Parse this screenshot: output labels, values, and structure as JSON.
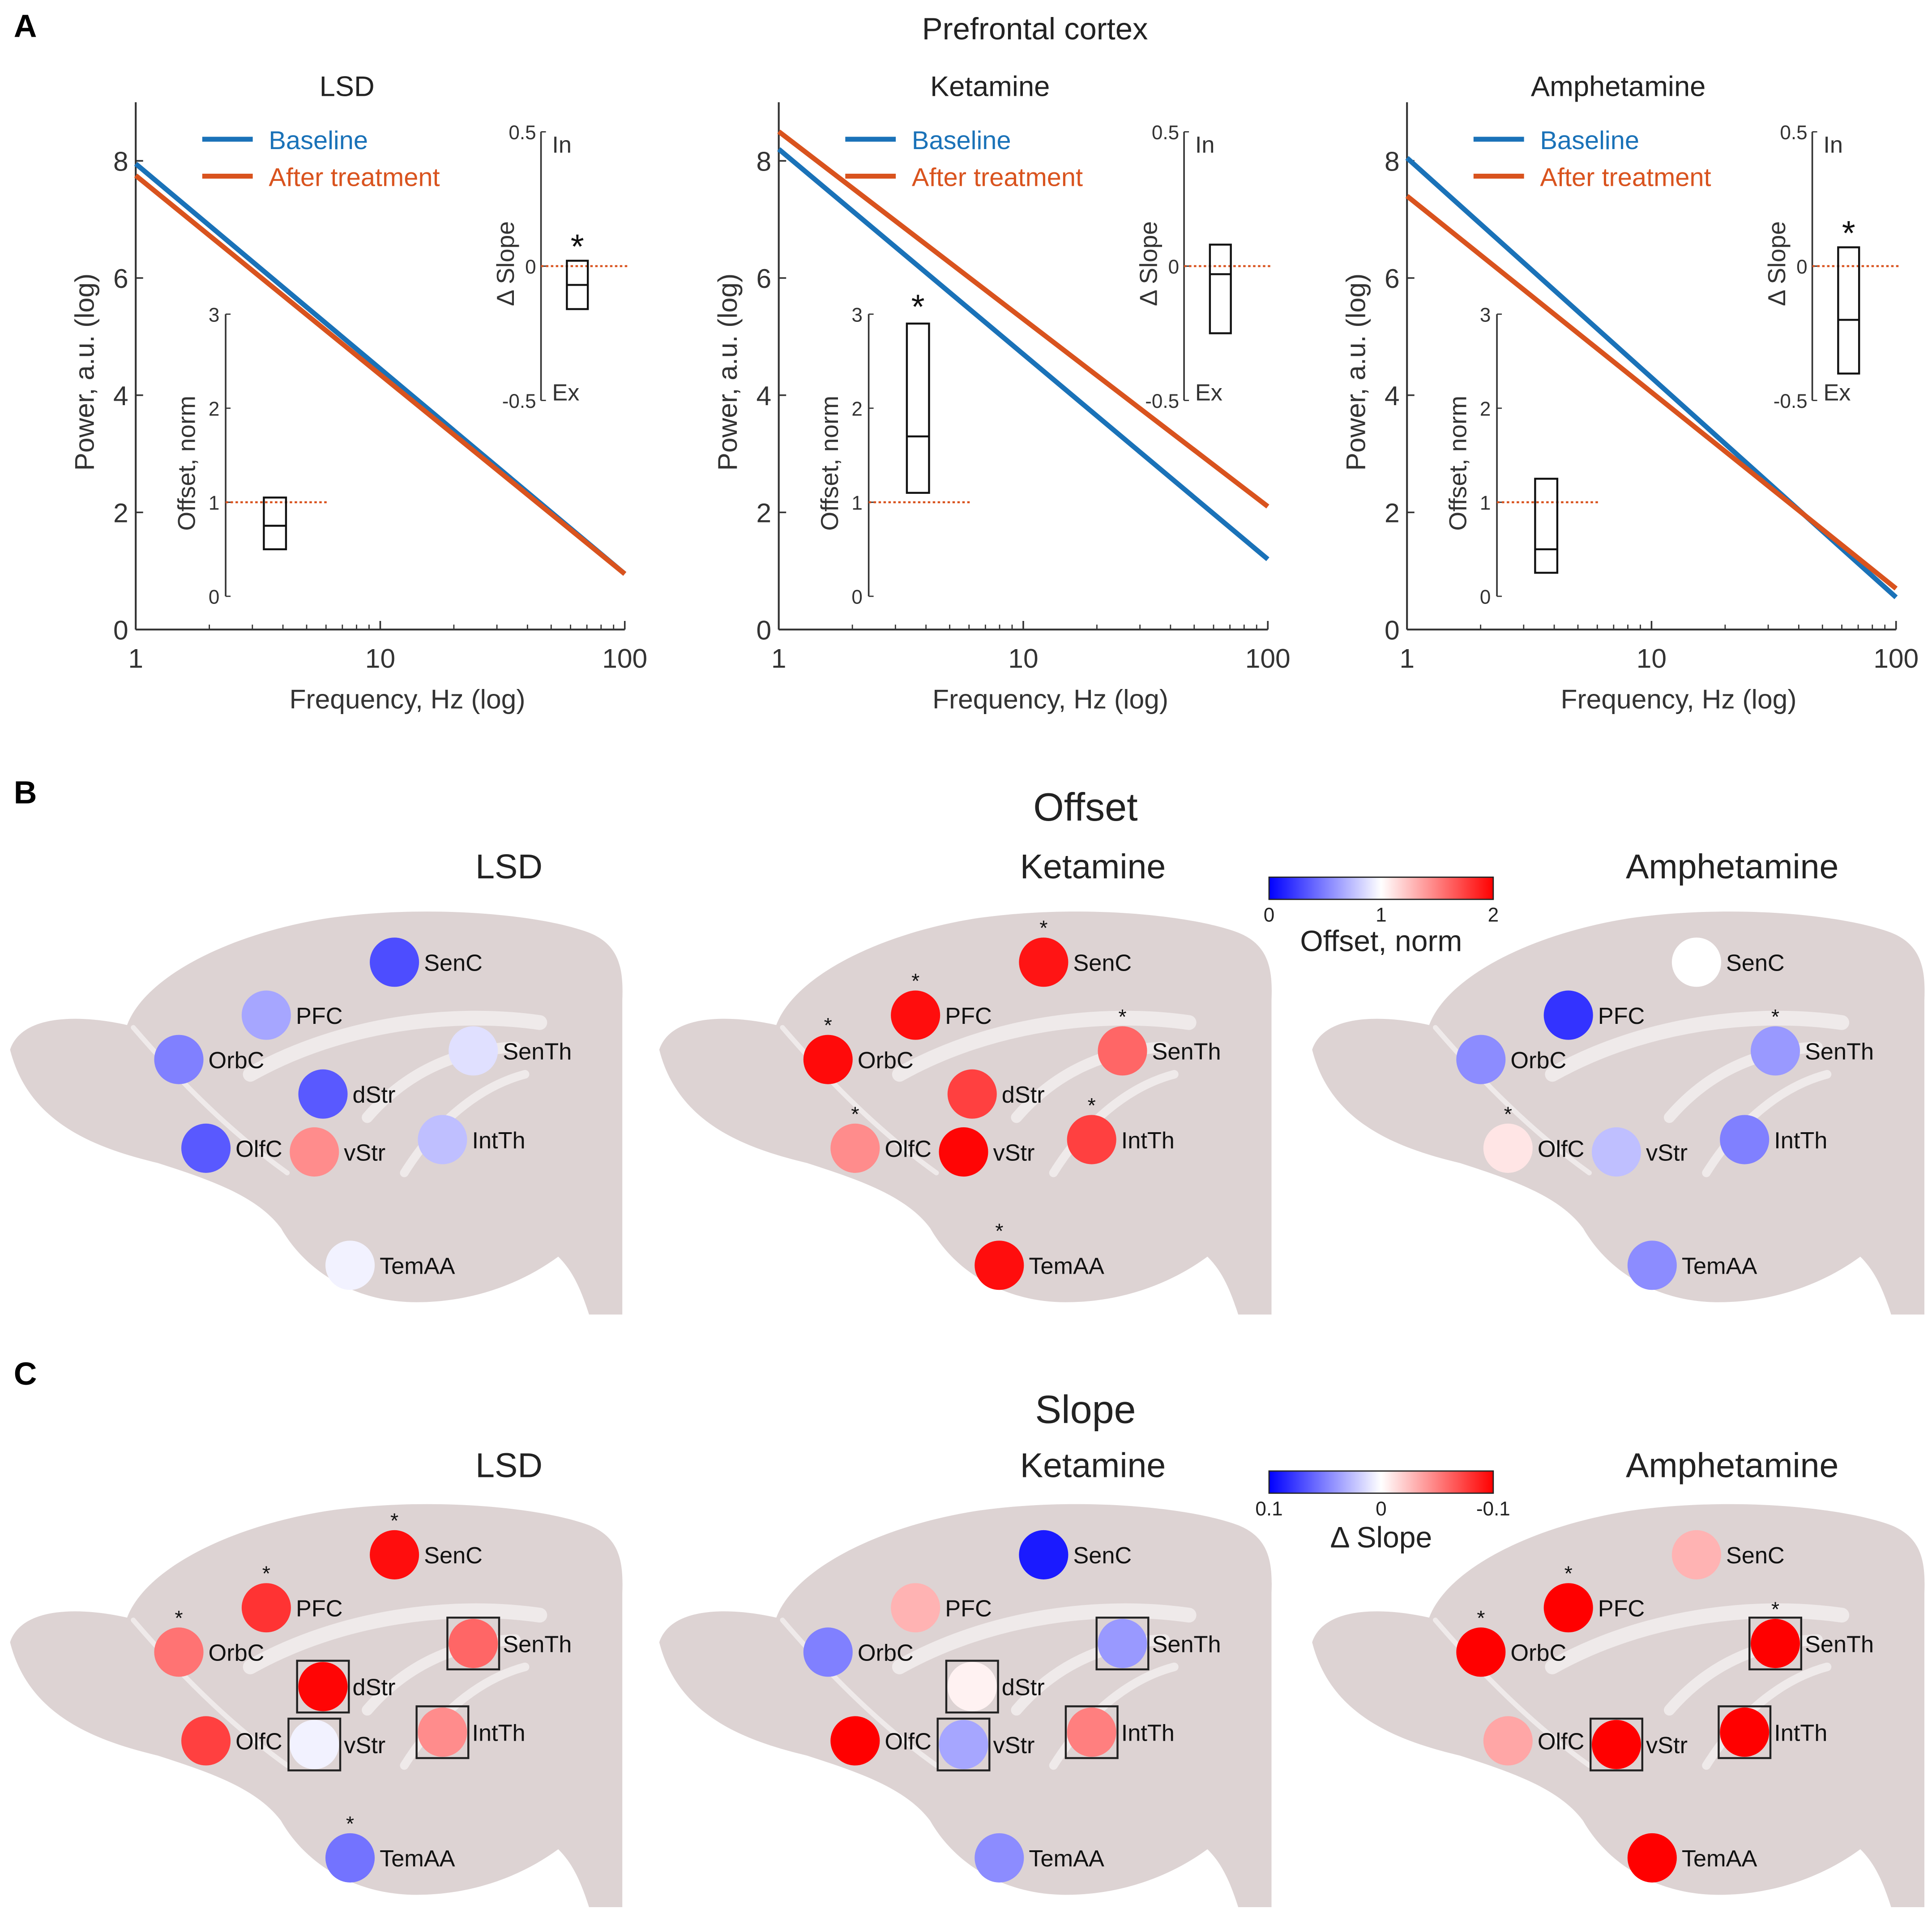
{
  "panel_letters": [
    "A",
    "B",
    "C"
  ],
  "panel_a_title": "Prefrontal cortex",
  "offset_title": "Offset",
  "slope_title": "Slope",
  "colorbar_offset": {
    "label": "Offset, norm",
    "ticks": [
      "0",
      "1",
      "2"
    ],
    "low": "#0000ff",
    "mid": "#ffffff",
    "high": "#ff0000"
  },
  "colorbar_slope": {
    "label": "Δ Slope",
    "ticks": [
      "0.1",
      "0",
      "-0.1"
    ],
    "low": "#0000ff",
    "mid": "#ffffff",
    "high": "#ff0000"
  },
  "colors": {
    "baseline": "#1a72b8",
    "after": "#d9531e",
    "brain": "#ddd3d3",
    "brain_fiber": "#efeaea",
    "zero_line": "#d9531e"
  },
  "chart_data": [
    {
      "type": "line",
      "title": "LSD",
      "xlabel": "Frequency, Hz (log)",
      "ylabel": "Power, a.u. (log)",
      "xscale": "log",
      "xlim": [
        1,
        100
      ],
      "ylim": [
        0,
        9
      ],
      "xticks": [
        "1",
        "10",
        "100"
      ],
      "yticks": [
        "0",
        "2",
        "4",
        "6",
        "8"
      ],
      "legend": [
        "Baseline",
        "After treatment"
      ],
      "series": [
        {
          "name": "Baseline",
          "x": [
            1,
            100
          ],
          "y": [
            7.95,
            0.95
          ]
        },
        {
          "name": "After treatment",
          "x": [
            1,
            100
          ],
          "y": [
            7.75,
            0.95
          ]
        }
      ],
      "inset_offset": {
        "ylabel": "Offset, norm",
        "ylim": [
          0,
          3
        ],
        "yticks": [
          "0",
          "1",
          "2",
          "3"
        ],
        "box": {
          "q1": 0.5,
          "median": 0.75,
          "q3": 1.05
        },
        "reference": 1,
        "significant": false
      },
      "inset_slope": {
        "ylabel": "Δ Slope",
        "ylim": [
          -0.5,
          0.5
        ],
        "yticks": [
          "0.5",
          "0",
          "-0.5"
        ],
        "top_label": "In",
        "bottom_label": "Ex",
        "box": {
          "q1": -0.16,
          "median": -0.07,
          "q3": 0.02
        },
        "reference": 0,
        "significant": true
      },
      "significance_mark": "*"
    },
    {
      "type": "line",
      "title": "Ketamine",
      "xlabel": "Frequency, Hz (log)",
      "ylabel": "Power, a.u. (log)",
      "xscale": "log",
      "xlim": [
        1,
        100
      ],
      "ylim": [
        0,
        9
      ],
      "xticks": [
        "1",
        "10",
        "100"
      ],
      "yticks": [
        "0",
        "2",
        "4",
        "6",
        "8"
      ],
      "legend": [
        "Baseline",
        "After treatment"
      ],
      "series": [
        {
          "name": "Baseline",
          "x": [
            1,
            100
          ],
          "y": [
            8.2,
            1.2
          ]
        },
        {
          "name": "After treatment",
          "x": [
            1,
            100
          ],
          "y": [
            8.5,
            2.1
          ]
        }
      ],
      "inset_offset": {
        "ylabel": "Offset, norm",
        "ylim": [
          0,
          3
        ],
        "yticks": [
          "0",
          "1",
          "2",
          "3"
        ],
        "box": {
          "q1": 1.1,
          "median": 1.7,
          "q3": 2.9
        },
        "reference": 1,
        "significant": true
      },
      "inset_slope": {
        "ylabel": "Δ Slope",
        "ylim": [
          -0.5,
          0.5
        ],
        "yticks": [
          "0.5",
          "0",
          "-0.5"
        ],
        "top_label": "In",
        "bottom_label": "Ex",
        "box": {
          "q1": -0.25,
          "median": -0.03,
          "q3": 0.08
        },
        "reference": 0,
        "significant": false
      },
      "significance_mark": "*"
    },
    {
      "type": "line",
      "title": "Amphetamine",
      "xlabel": "Frequency, Hz (log)",
      "ylabel": "Power, a.u. (log)",
      "xscale": "log",
      "xlim": [
        1,
        100
      ],
      "ylim": [
        0,
        9
      ],
      "xticks": [
        "1",
        "10",
        "100"
      ],
      "yticks": [
        "0",
        "2",
        "4",
        "6",
        "8"
      ],
      "legend": [
        "Baseline",
        "After treatment"
      ],
      "series": [
        {
          "name": "Baseline",
          "x": [
            1,
            100
          ],
          "y": [
            8.05,
            0.55
          ]
        },
        {
          "name": "After treatment",
          "x": [
            1,
            100
          ],
          "y": [
            7.4,
            0.7
          ]
        }
      ],
      "inset_offset": {
        "ylabel": "Offset, norm",
        "ylim": [
          0,
          3
        ],
        "yticks": [
          "0",
          "1",
          "2",
          "3"
        ],
        "box": {
          "q1": 0.25,
          "median": 0.5,
          "q3": 1.25
        },
        "reference": 1,
        "significant": false
      },
      "inset_slope": {
        "ylabel": "Δ Slope",
        "ylim": [
          -0.5,
          0.5
        ],
        "yticks": [
          "0.5",
          "0",
          "-0.5"
        ],
        "top_label": "In",
        "bottom_label": "Ex",
        "box": {
          "q1": -0.4,
          "median": -0.2,
          "q3": 0.07
        },
        "reference": 0,
        "significant": true
      },
      "significance_mark": "*"
    },
    {
      "type": "heatmap",
      "title": "LSD",
      "measure": "Offset, norm",
      "color_range": [
        0,
        2
      ],
      "regions": [
        {
          "name": "SenC",
          "value": 0.3,
          "sig": false,
          "boxed": false
        },
        {
          "name": "PFC",
          "value": 0.65,
          "sig": false,
          "boxed": false
        },
        {
          "name": "OrbC",
          "value": 0.5,
          "sig": false,
          "boxed": false
        },
        {
          "name": "SenTh",
          "value": 0.88,
          "sig": false,
          "boxed": false
        },
        {
          "name": "dStr",
          "value": 0.35,
          "sig": false,
          "boxed": false
        },
        {
          "name": "OlfC",
          "value": 0.35,
          "sig": false,
          "boxed": false
        },
        {
          "name": "vStr",
          "value": 1.45,
          "sig": false,
          "boxed": false
        },
        {
          "name": "IntTh",
          "value": 0.75,
          "sig": false,
          "boxed": false
        },
        {
          "name": "TemAA",
          "value": 0.95,
          "sig": false,
          "boxed": false
        }
      ]
    },
    {
      "type": "heatmap",
      "title": "Ketamine",
      "measure": "Offset, norm",
      "color_range": [
        0,
        2
      ],
      "regions": [
        {
          "name": "SenC",
          "value": 1.92,
          "sig": true,
          "boxed": false
        },
        {
          "name": "PFC",
          "value": 1.95,
          "sig": true,
          "boxed": false
        },
        {
          "name": "OrbC",
          "value": 1.96,
          "sig": true,
          "boxed": false
        },
        {
          "name": "SenTh",
          "value": 1.6,
          "sig": true,
          "boxed": false
        },
        {
          "name": "dStr",
          "value": 1.75,
          "sig": false,
          "boxed": false
        },
        {
          "name": "OlfC",
          "value": 1.45,
          "sig": true,
          "boxed": false
        },
        {
          "name": "vStr",
          "value": 1.98,
          "sig": false,
          "boxed": false
        },
        {
          "name": "IntTh",
          "value": 1.75,
          "sig": true,
          "boxed": false
        },
        {
          "name": "TemAA",
          "value": 1.95,
          "sig": true,
          "boxed": false
        }
      ]
    },
    {
      "type": "heatmap",
      "title": "Amphetamine",
      "measure": "Offset, norm",
      "color_range": [
        0,
        2
      ],
      "regions": [
        {
          "name": "SenC",
          "value": 1.0,
          "sig": false,
          "boxed": false
        },
        {
          "name": "PFC",
          "value": 0.2,
          "sig": false,
          "boxed": false
        },
        {
          "name": "OrbC",
          "value": 0.55,
          "sig": false,
          "boxed": false
        },
        {
          "name": "SenTh",
          "value": 0.6,
          "sig": true,
          "boxed": false
        },
        {
          "name": "OlfC",
          "value": 1.1,
          "sig": true,
          "boxed": false
        },
        {
          "name": "vStr",
          "value": 0.75,
          "sig": false,
          "boxed": false
        },
        {
          "name": "IntTh",
          "value": 0.5,
          "sig": false,
          "boxed": false
        },
        {
          "name": "TemAA",
          "value": 0.55,
          "sig": false,
          "boxed": false
        }
      ]
    },
    {
      "type": "heatmap",
      "title": "LSD",
      "measure": "Δ Slope",
      "color_range": [
        0.1,
        -0.1
      ],
      "regions": [
        {
          "name": "SenC",
          "value": -0.095,
          "sig": true,
          "boxed": false
        },
        {
          "name": "PFC",
          "value": -0.08,
          "sig": true,
          "boxed": false
        },
        {
          "name": "OrbC",
          "value": -0.055,
          "sig": true,
          "boxed": false
        },
        {
          "name": "SenTh",
          "value": -0.06,
          "sig": false,
          "boxed": true
        },
        {
          "name": "dStr",
          "value": -0.098,
          "sig": false,
          "boxed": true
        },
        {
          "name": "OlfC",
          "value": -0.075,
          "sig": false,
          "boxed": false
        },
        {
          "name": "vStr",
          "value": 0.005,
          "sig": false,
          "boxed": true
        },
        {
          "name": "IntTh",
          "value": -0.045,
          "sig": false,
          "boxed": true
        },
        {
          "name": "TemAA",
          "value": 0.055,
          "sig": true,
          "boxed": false
        }
      ]
    },
    {
      "type": "heatmap",
      "title": "Ketamine",
      "measure": "Δ Slope",
      "color_range": [
        0.1,
        -0.1
      ],
      "regions": [
        {
          "name": "SenC",
          "value": 0.09,
          "sig": false,
          "boxed": false
        },
        {
          "name": "PFC",
          "value": -0.03,
          "sig": false,
          "boxed": false
        },
        {
          "name": "OrbC",
          "value": 0.05,
          "sig": false,
          "boxed": false
        },
        {
          "name": "SenTh",
          "value": 0.04,
          "sig": false,
          "boxed": true
        },
        {
          "name": "dStr",
          "value": -0.005,
          "sig": false,
          "boxed": true
        },
        {
          "name": "OlfC",
          "value": -0.1,
          "sig": false,
          "boxed": false
        },
        {
          "name": "vStr",
          "value": 0.035,
          "sig": false,
          "boxed": true
        },
        {
          "name": "IntTh",
          "value": -0.05,
          "sig": false,
          "boxed": true
        },
        {
          "name": "TemAA",
          "value": 0.045,
          "sig": false,
          "boxed": false
        }
      ]
    },
    {
      "type": "heatmap",
      "title": "Amphetamine",
      "measure": "Δ Slope",
      "color_range": [
        0.1,
        -0.1
      ],
      "regions": [
        {
          "name": "SenC",
          "value": -0.03,
          "sig": false,
          "boxed": false
        },
        {
          "name": "PFC",
          "value": -0.1,
          "sig": true,
          "boxed": false
        },
        {
          "name": "OrbC",
          "value": -0.1,
          "sig": true,
          "boxed": false
        },
        {
          "name": "SenTh",
          "value": -0.1,
          "sig": true,
          "boxed": true
        },
        {
          "name": "OlfC",
          "value": -0.035,
          "sig": false,
          "boxed": false
        },
        {
          "name": "vStr",
          "value": -0.1,
          "sig": false,
          "boxed": true
        },
        {
          "name": "IntTh",
          "value": -0.1,
          "sig": false,
          "boxed": true
        },
        {
          "name": "TemAA",
          "value": -0.1,
          "sig": false,
          "boxed": false
        }
      ]
    }
  ]
}
